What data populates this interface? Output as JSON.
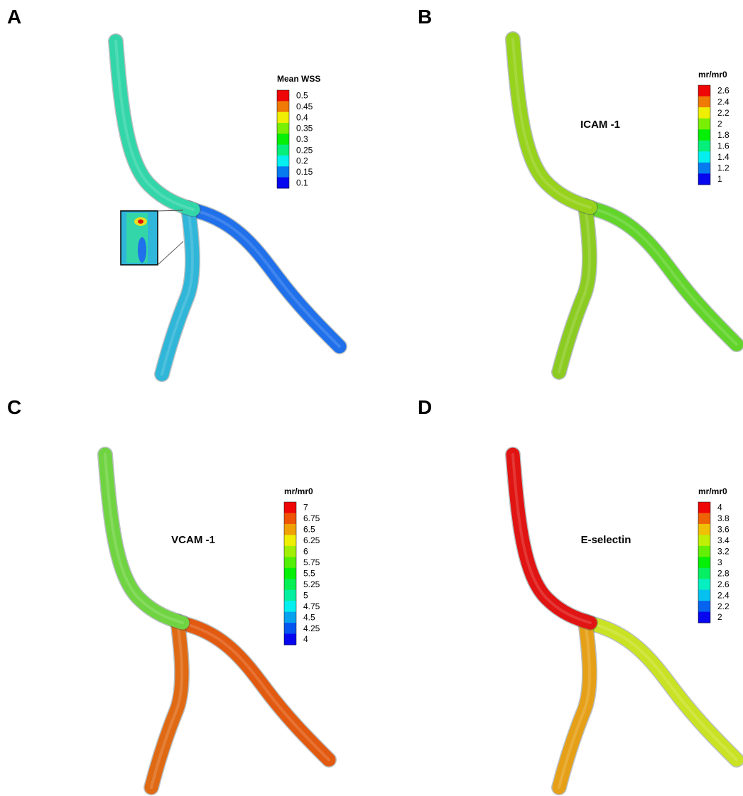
{
  "panels": [
    {
      "label": "A",
      "legend": {
        "title": "Mean WSS",
        "ticks": [
          "0.5",
          "0.45",
          "0.4",
          "0.35",
          "0.3",
          "0.25",
          "0.2",
          "0.15",
          "0.1"
        ]
      }
    },
    {
      "label": "B",
      "annotation": "ICAM -1",
      "legend": {
        "title": "mr/mr0",
        "ticks": [
          "2.6",
          "2.4",
          "2.2",
          "2",
          "1.8",
          "1.6",
          "1.4",
          "1.2",
          "1"
        ]
      }
    },
    {
      "label": "C",
      "annotation": "VCAM -1",
      "legend": {
        "title": "mr/mr0",
        "ticks": [
          "7",
          "6.75",
          "6.5",
          "6.25",
          "6",
          "5.75",
          "5.5",
          "5.25",
          "5",
          "4.75",
          "4.5",
          "4.25",
          "4"
        ]
      }
    },
    {
      "label": "D",
      "annotation": "E-selectin",
      "legend": {
        "title": "mr/mr0",
        "ticks": [
          "4",
          "3.8",
          "3.6",
          "3.4",
          "3.2",
          "3",
          "2.8",
          "2.6",
          "2.4",
          "2.2",
          "2"
        ]
      }
    }
  ]
}
